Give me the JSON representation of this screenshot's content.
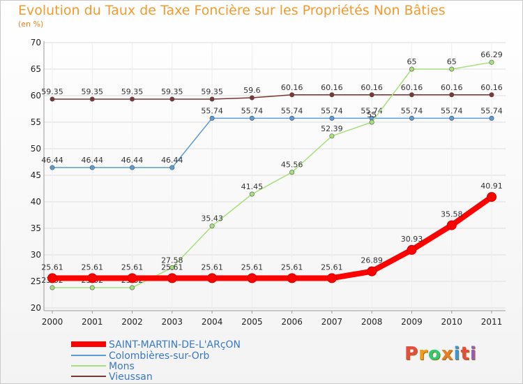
{
  "title": "Evolution du Taux de Taxe Foncière sur les Propriétés Non Bâties",
  "unit_label": "(en %)",
  "logo_text": "Proxiti",
  "colors": {
    "title": "#f29a2e",
    "axis": "#999999",
    "grid": "#dddddd"
  },
  "chart_data": {
    "type": "line",
    "title": "Evolution du Taux de Taxe Foncière sur les Propriétés Non Bâties",
    "ylabel": "(en %)",
    "xlabel": "",
    "x": [
      "2000",
      "2001",
      "2002",
      "2003",
      "2004",
      "2005",
      "2006",
      "2007",
      "2008",
      "2009",
      "2010",
      "2011"
    ],
    "ylim": [
      20,
      70
    ],
    "yticks": [
      20,
      25,
      30,
      35,
      40,
      45,
      50,
      55,
      60,
      65,
      70
    ],
    "grid": true,
    "legend": "bottom-left",
    "series": [
      {
        "name": "SAINT-MARTIN-DE-L'ARçON",
        "color": "#ff0000",
        "values": [
          25.61,
          25.61,
          25.61,
          25.61,
          25.61,
          25.61,
          25.61,
          25.61,
          26.89,
          30.93,
          35.58,
          40.91
        ],
        "labels": [
          "25.61",
          "25.61",
          "25.61",
          "25.61",
          "25.61",
          "25.61",
          "25.61",
          "25.61",
          "26.89",
          "30.93",
          "35.58",
          "40.91"
        ]
      },
      {
        "name": "Colombières-sur-Orb",
        "color": "#5b9bd5",
        "values": [
          46.44,
          46.44,
          46.44,
          46.44,
          55.74,
          55.74,
          55.74,
          55.74,
          55.74,
          55.74,
          55.74,
          55.74
        ],
        "labels": [
          "46.44",
          "46.44",
          "46.44",
          "46.44",
          "55.74",
          "55.74",
          "55.74",
          "55.74",
          "55.74",
          "55.74",
          "55.74",
          "55.74"
        ]
      },
      {
        "name": "Mons",
        "color": "#a6e07a",
        "values": [
          23.82,
          23.82,
          23.82,
          27.58,
          35.43,
          41.45,
          45.56,
          52.39,
          55.0,
          65.0,
          65.0,
          66.29
        ],
        "labels": [
          "23.82",
          "23.82",
          "23.82",
          "27.58",
          "35.43",
          "41.45",
          "45.56",
          "52.39",
          "55",
          "65",
          "65",
          "66.29"
        ]
      },
      {
        "name": "Vieussan",
        "color": "#7a3535",
        "values": [
          59.35,
          59.35,
          59.35,
          59.35,
          59.35,
          59.6,
          60.16,
          60.16,
          60.16,
          60.16,
          60.16,
          60.16
        ],
        "labels": [
          "59.35",
          "59.35",
          "59.35",
          "59.35",
          "59.35",
          "59.6",
          "60.16",
          "60.16",
          "60.16",
          "60.16",
          "60.16",
          "60.16"
        ]
      }
    ]
  }
}
